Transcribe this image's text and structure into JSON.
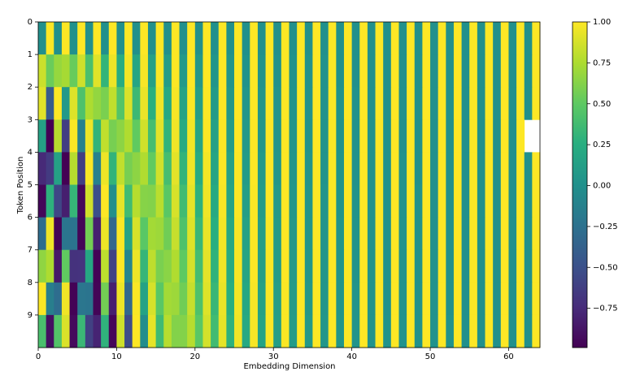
{
  "chart_data": {
    "type": "heatmap",
    "x_label": "Embedding Dimension",
    "y_label": "Token Position",
    "xlim": [
      0,
      64
    ],
    "xticks": [
      0,
      10,
      20,
      30,
      40,
      50,
      60
    ],
    "ylim": [
      0,
      10
    ],
    "yticks": [
      0,
      1,
      2,
      3,
      4,
      5,
      6,
      7,
      8,
      9
    ],
    "y_inverted": true,
    "colormap": "viridis",
    "colorbar": {
      "lim": [
        -0.99,
        1
      ],
      "ticks": [
        {
          "value": -0.75,
          "label": "−0.75"
        },
        {
          "value": -0.5,
          "label": "−0.50"
        },
        {
          "value": -0.25,
          "label": "−0.25"
        },
        {
          "value": 0,
          "label": "0.00"
        },
        0.25,
        {
          "value": 0.5,
          "label": "0.50"
        },
        0.75,
        {
          "value": 1,
          "label": "1.00"
        }
      ]
    },
    "values": [
      [
        0,
        1,
        0,
        1,
        0,
        1,
        0,
        1,
        0,
        1,
        0,
        1,
        0,
        1,
        0,
        1,
        0,
        1,
        0,
        1,
        0,
        1,
        0,
        1,
        0,
        1,
        0,
        1,
        0,
        1,
        0,
        1,
        0,
        1,
        0,
        1,
        0,
        1,
        0,
        1,
        0,
        1,
        0,
        1,
        0,
        1,
        0,
        1,
        0,
        1,
        0,
        1,
        0,
        1,
        0,
        1,
        0,
        1,
        0,
        1,
        0,
        1,
        0,
        1
      ],
      [
        0.84,
        0.54,
        0.68,
        0.73,
        0.53,
        0.85,
        0.41,
        0.91,
        0.31,
        0.95,
        0.24,
        0.97,
        0.18,
        0.98,
        0.13,
        0.99,
        0.1,
        1,
        0.07,
        1,
        0.06,
        1,
        0.04,
        1,
        0.03,
        1,
        0.02,
        1,
        0.02,
        1,
        0.01,
        1,
        0.01,
        1,
        0.01,
        1,
        0.01,
        1,
        0,
        1,
        0,
        1,
        0,
        1,
        0,
        1,
        0,
        1,
        0,
        1,
        0,
        1,
        0,
        1,
        0,
        1,
        0,
        1,
        0,
        1,
        0,
        1,
        0,
        1
      ],
      [
        0.91,
        -0.42,
        1,
        0.07,
        0.9,
        0.43,
        0.75,
        0.67,
        0.59,
        0.81,
        0.46,
        0.89,
        0.35,
        0.94,
        0.26,
        0.96,
        0.2,
        0.98,
        0.15,
        0.99,
        0.11,
        0.99,
        0.08,
        1,
        0.06,
        1,
        0.05,
        1,
        0.04,
        1,
        0.03,
        1,
        0.02,
        1,
        0.01,
        1,
        0.01,
        1,
        0.01,
        1,
        0.01,
        1,
        0,
        1,
        0,
        1,
        0,
        1,
        0,
        1,
        0,
        1,
        0,
        1,
        0,
        1,
        0,
        1,
        0,
        1,
        0,
        1,
        0,
        1
      ],
      [
        0.14,
        -0.99,
        0.78,
        -0.63,
        0.99,
        -0.12,
        0.95,
        0.3,
        0.81,
        0.58,
        0.65,
        0.76,
        0.51,
        0.86,
        0.39,
        0.92,
        0.3,
        0.96,
        0.22,
        0.97,
        0.17,
        0.99,
        0.13,
        0.99,
        0.09,
        1,
        0.07,
        1,
        0.05,
        1,
        0.04,
        1,
        0.03,
        1,
        0.02,
        1,
        0.02,
        1,
        0.01,
        1,
        0.01,
        1,
        0.01,
        1,
        0.01,
        1,
        0,
        1,
        0,
        1,
        0,
        1,
        0,
        1,
        0,
        1,
        0,
        1,
        0,
        1,
        0,
        1
      ],
      [
        -0.76,
        -0.65,
        0.14,
        -0.99,
        0.78,
        -0.63,
        0.99,
        -0.12,
        0.95,
        0.3,
        0.81,
        0.58,
        0.65,
        0.76,
        0.51,
        0.86,
        0.39,
        0.92,
        0.3,
        0.96,
        0.22,
        0.97,
        0.17,
        0.99,
        0.13,
        0.99,
        0.09,
        1,
        0.07,
        1,
        0.05,
        1,
        0.04,
        1,
        0.03,
        1,
        0.02,
        1,
        0.02,
        1,
        0.01,
        1,
        0.01,
        1,
        0.01,
        1,
        0.01,
        1,
        0,
        1,
        0,
        1,
        0,
        1,
        0,
        1,
        0,
        1,
        0,
        1,
        0,
        1,
        0,
        1
      ],
      [
        -0.96,
        0.28,
        -0.57,
        -0.82,
        0.32,
        -0.95,
        0.86,
        -0.51,
        1,
        -0.01,
        0.93,
        0.37,
        0.78,
        0.63,
        0.62,
        0.79,
        0.48,
        0.88,
        0.37,
        0.93,
        0.28,
        0.96,
        0.21,
        0.98,
        0.16,
        0.99,
        0.12,
        0.99,
        0.09,
        1,
        0.07,
        1,
        0.05,
        1,
        0.04,
        1,
        0.03,
        1,
        0.02,
        1,
        0.02,
        1,
        0.01,
        1,
        0.01,
        1,
        0.01,
        1,
        0.01,
        1,
        0,
        1,
        0,
        1,
        0,
        1,
        0,
        1,
        0,
        1,
        0,
        1,
        0,
        1
      ],
      [
        -0.28,
        0.96,
        -0.98,
        -0.21,
        -0.23,
        -0.97,
        0.57,
        -0.82,
        0.95,
        -0.32,
        0.99,
        0.15,
        0.88,
        0.48,
        0.72,
        0.7,
        0.56,
        0.83,
        0.43,
        0.9,
        0.33,
        0.94,
        0.25,
        0.97,
        0.19,
        0.98,
        0.14,
        0.99,
        0.11,
        0.99,
        0.08,
        1,
        0.06,
        1,
        0.04,
        1,
        0.03,
        1,
        0.03,
        1,
        0.02,
        1,
        0.01,
        1,
        0.01,
        1,
        0.01,
        1,
        0.01,
        1,
        0,
        1,
        0,
        1,
        0,
        1,
        0,
        1,
        0,
        1,
        0,
        1,
        0,
        1
      ],
      [
        0.66,
        0.75,
        -0.86,
        0.51,
        -0.71,
        -0.7,
        0.19,
        -0.98,
        0.8,
        -0.6,
        1,
        -0.09,
        0.95,
        0.32,
        0.8,
        0.59,
        0.64,
        0.76,
        0.5,
        0.87,
        0.38,
        0.92,
        0.29,
        0.96,
        0.22,
        0.98,
        0.17,
        0.99,
        0.12,
        0.99,
        0.09,
        1,
        0.07,
        1,
        0.05,
        1,
        0.04,
        1,
        0.03,
        1,
        0.02,
        1,
        0.02,
        1,
        0.01,
        1,
        0.01,
        1,
        0.01,
        1,
        0.01,
        1,
        0,
        1,
        0,
        1,
        0,
        1,
        0,
        1,
        0,
        1,
        0,
        1
      ],
      [
        0.99,
        -0.15,
        -0.28,
        0.96,
        -0.98,
        -0.21,
        -0.23,
        -0.97,
        0.57,
        -0.82,
        0.95,
        -0.32,
        0.99,
        0.15,
        0.88,
        0.48,
        0.72,
        0.7,
        0.56,
        0.83,
        0.43,
        0.9,
        0.33,
        0.94,
        0.25,
        0.97,
        0.19,
        0.98,
        0.14,
        0.99,
        0.11,
        0.99,
        0.08,
        1,
        0.06,
        1,
        0.04,
        1,
        0.03,
        1,
        0.03,
        1,
        0.02,
        1,
        0.01,
        1,
        0.01,
        1,
        0.01,
        1,
        0.01,
        1,
        0,
        1,
        0,
        1,
        0,
        1,
        0,
        1,
        0,
        1,
        0,
        1
      ],
      [
        0.41,
        -0.91,
        0.45,
        0.89,
        -0.94,
        0.34,
        -0.61,
        -0.79,
        0.29,
        -0.96,
        0.85,
        -0.53,
        1,
        -0.03,
        0.93,
        0.36,
        0.78,
        0.62,
        0.62,
        0.78,
        0.48,
        0.87,
        0.37,
        0.93,
        0.28,
        0.96,
        0.21,
        0.98,
        0.16,
        0.99,
        0.12,
        0.99,
        0.09,
        1,
        0.07,
        1,
        0.05,
        1,
        0.04,
        1,
        0.03,
        1,
        0.02,
        1,
        0.02,
        1,
        0.01,
        1,
        0.01,
        1,
        0.01,
        1,
        0.01,
        1,
        0,
        1,
        0,
        1,
        0,
        1,
        0,
        1,
        0,
        1
      ]
    ]
  }
}
